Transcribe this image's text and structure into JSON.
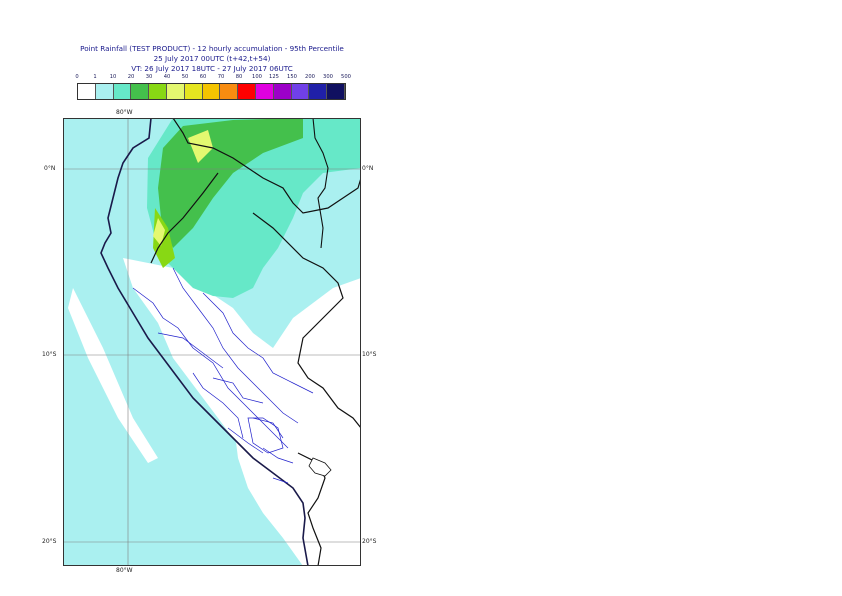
{
  "title": {
    "line1": "Point Rainfall (TEST PRODUCT) - 12 hourly accumulation - 95th Percentile",
    "line2": "25 July 2017 00UTC (t+42,t+54)",
    "line3": "VT: 26 July 2017 18UTC - 27 July 2017 06UTC"
  },
  "legend": {
    "labels": [
      "0",
      "1",
      "10",
      "20",
      "30",
      "40",
      "50",
      "60",
      "70",
      "80",
      "100",
      "125",
      "150",
      "200",
      "300",
      "500"
    ],
    "colors": [
      "#ffffff",
      "#aaf0f0",
      "#66e8c8",
      "#44c04c",
      "#88d814",
      "#e4f870",
      "#e6e620",
      "#f4c400",
      "#f88c10",
      "#ff0000",
      "#e000e0",
      "#9c00c8",
      "#7040e8",
      "#2020a8",
      "#101060"
    ]
  },
  "axes": {
    "top_lon": "80°W",
    "bottom_lon": "80°W",
    "lat_left": [
      "0°N",
      "10°S",
      "20°S"
    ],
    "lat_right": [
      "0°N",
      "10°S",
      "20°S"
    ]
  }
}
